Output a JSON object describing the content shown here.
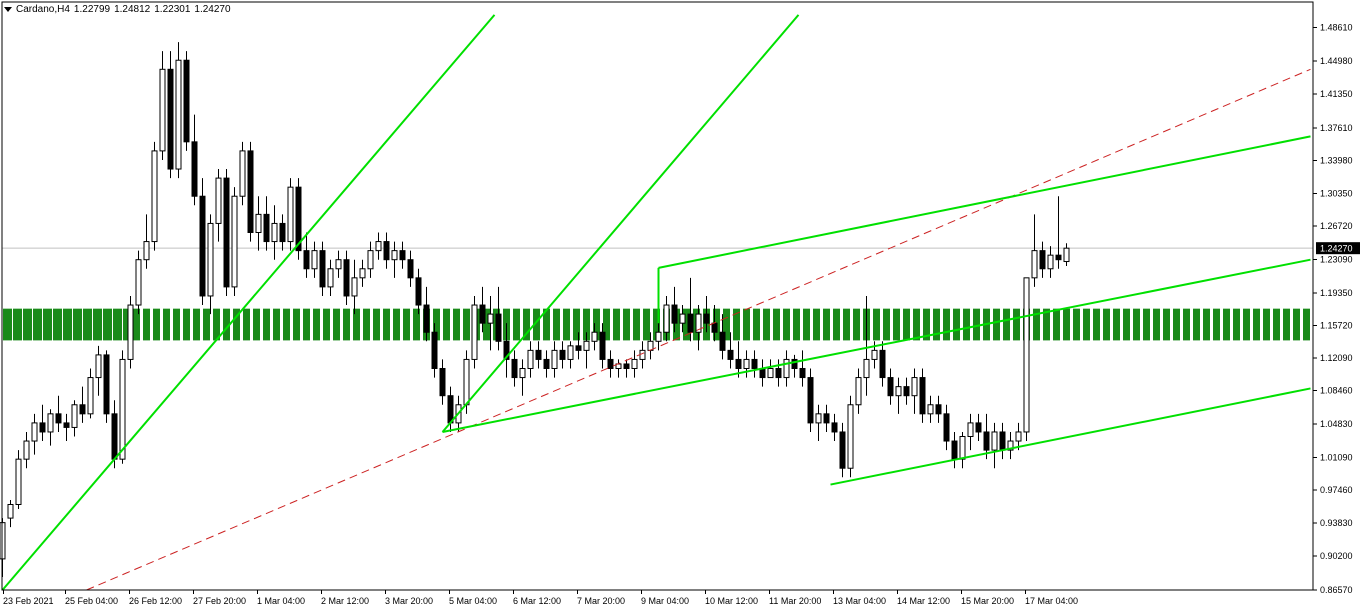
{
  "header": {
    "symbol": "Cardano,H4",
    "open": "1.22799",
    "high": "1.24812",
    "low": "1.22301",
    "close": "1.24270"
  },
  "colors": {
    "background": "#ffffff",
    "frame": "#000000",
    "trendline": "#00e000",
    "channel_band": "#1a8a1a",
    "dashed_line": "#cc2222",
    "current_price_line": "#c0c0c0",
    "price_tag_bg": "#000000",
    "price_tag_text": "#ffffff"
  },
  "chart_data": {
    "type": "candlestick",
    "ylim": [
      0.8657,
      1.5
    ]
  }
}
